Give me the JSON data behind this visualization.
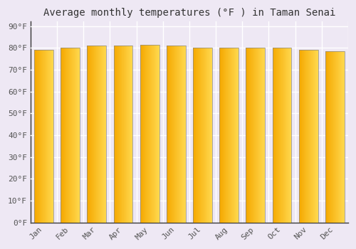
{
  "title": "Average monthly temperatures (°F ) in Taman Senai",
  "months": [
    "Jan",
    "Feb",
    "Mar",
    "Apr",
    "May",
    "Jun",
    "Jul",
    "Aug",
    "Sep",
    "Oct",
    "Nov",
    "Dec"
  ],
  "values": [
    79.0,
    80.0,
    81.0,
    81.1,
    81.5,
    81.0,
    80.0,
    80.0,
    80.0,
    80.0,
    79.0,
    78.6
  ],
  "bar_color_left": "#F5A800",
  "bar_color_right": "#FFD84D",
  "bar_edge_color": "#888888",
  "background_color": "#EEE8F4",
  "plot_bg_color": "#EEE8F4",
  "grid_color": "#FFFFFF",
  "yticks": [
    0,
    10,
    20,
    30,
    40,
    50,
    60,
    70,
    80,
    90
  ],
  "ylim": [
    0,
    92
  ],
  "title_fontsize": 10,
  "tick_fontsize": 8,
  "font_family": "monospace"
}
